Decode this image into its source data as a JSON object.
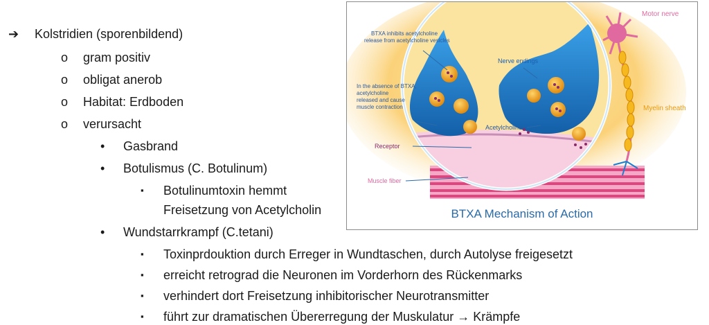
{
  "notes": {
    "root": {
      "marker": "➔",
      "text": "Kolstridien (sporenbildend)"
    },
    "level1": [
      {
        "marker": "o",
        "text": "gram positiv"
      },
      {
        "marker": "o",
        "text": "obligat anerob"
      },
      {
        "marker": "o",
        "text": "Habitat: Erdboden"
      },
      {
        "marker": "o",
        "text": "verursacht"
      }
    ],
    "level2": [
      {
        "marker": "•",
        "text": "Gasbrand"
      },
      {
        "marker": "•",
        "text": "Botulismus (C. Botulinum)"
      },
      {
        "marker": "•",
        "text": "Wundstarrkrampf (C.tetani)"
      }
    ],
    "botulismus_sub": [
      {
        "marker": "▪",
        "text": "Botulinumtoxin hemmt"
      },
      {
        "marker": "",
        "text": "Freisetzung von Acetylcholin"
      }
    ],
    "tetanus_sub": [
      {
        "marker": "▪",
        "text": "Toxinprdouktion durch Erreger in Wundtaschen, durch Autolyse freigesetzt"
      },
      {
        "marker": "▪",
        "text": "erreicht retrograd die Neuronen im Vorderhorn des Rückenmarks"
      },
      {
        "marker": "▪",
        "text": "verhindert dort Freisetzung inhibitorischer Neurotransmitter"
      },
      {
        "marker": "▪",
        "text": "führt zur dramatischen Übererregung der Muskulatur → Krämpfe"
      }
    ]
  },
  "figure": {
    "caption": "BTXA Mechanism of Action",
    "labels": {
      "motor_nerve": "Motor nerve",
      "btxa_line1": "BTXA inhibits acetylcholine",
      "btxa_line2": "release from acetylcholine vesicles",
      "nerve_endings": "Nerve endings",
      "absence_line1": "In the absence of BTXA,",
      "absence_line2": "acetylcholine",
      "absence_line3": "released and cause",
      "absence_line4": "muscle contraction",
      "acetylcholine": "Acetylcholine",
      "myelin_sheath": "Myelin sheath",
      "receptor": "Receptor",
      "muscle_fiber": "Muscle fiber"
    },
    "colors": {
      "caption": "#2a6aa8",
      "nerve_terminal": "#1a7fd0",
      "vesicle": "#f2a31c",
      "muscle": "#e0457f",
      "motor_label": "#e06aa0",
      "myelin": "#f5b81e",
      "background_glow": "#fbd27a"
    }
  }
}
